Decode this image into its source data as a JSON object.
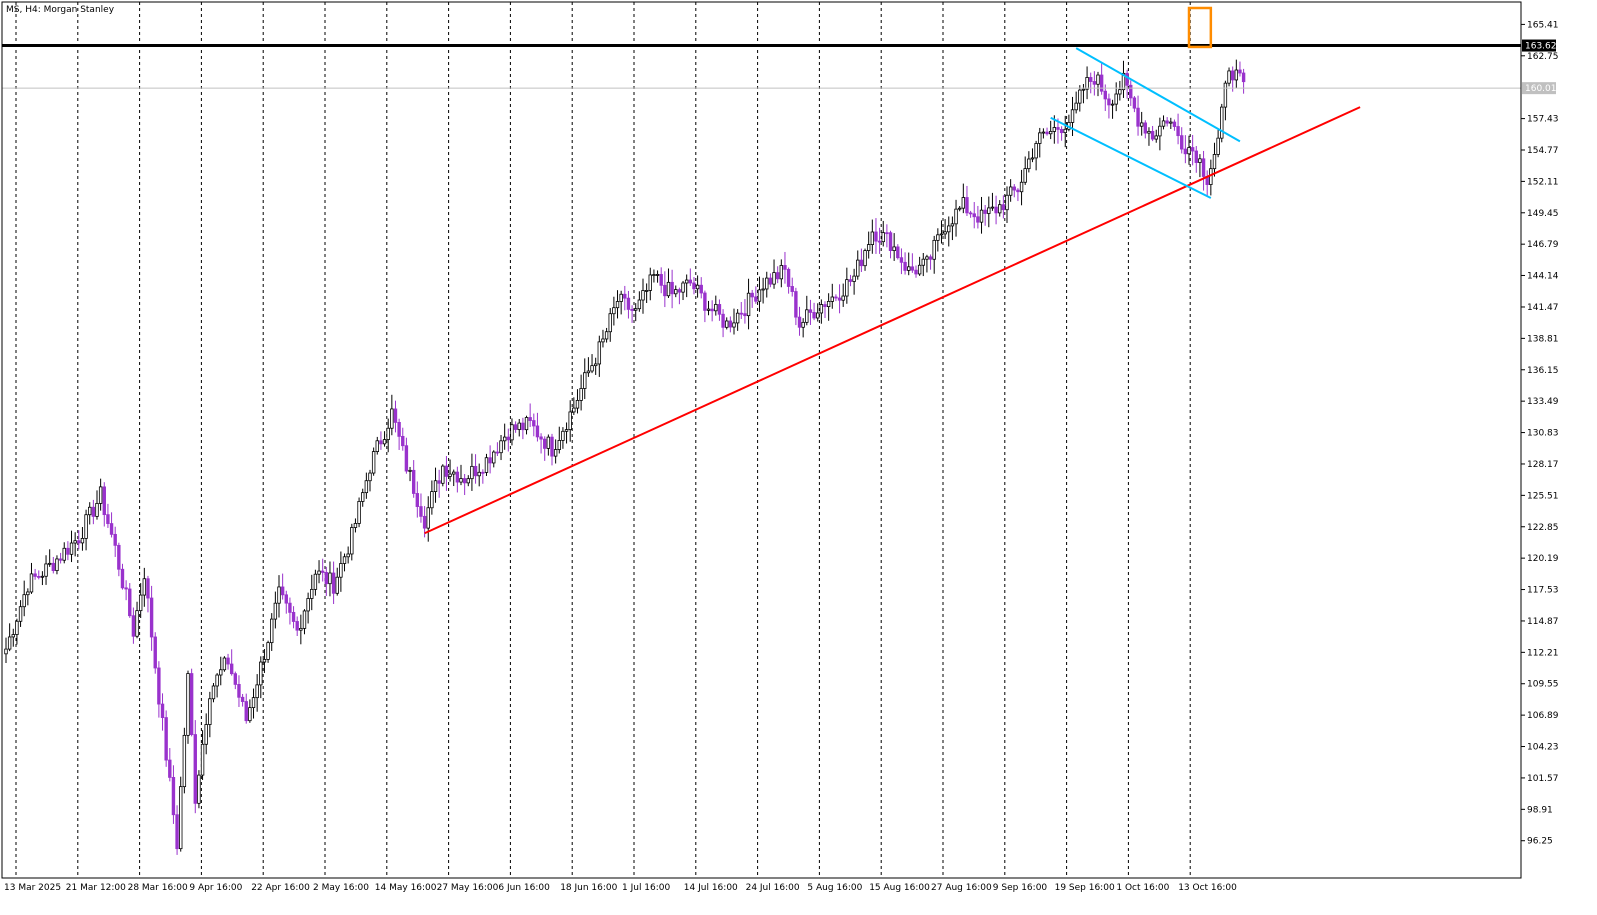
{
  "header": {
    "symbol_label": "MS, H4:  Morgan Stanley"
  },
  "chart_data": {
    "type": "candlestick",
    "symbol": "MS",
    "timeframe": "H4",
    "instrument": "Morgan Stanley",
    "price_axis": {
      "min": 93.6,
      "max": 166.8,
      "ticks": [
        165.41,
        162.75,
        157.43,
        154.77,
        152.11,
        149.45,
        146.79,
        144.14,
        141.47,
        138.81,
        136.15,
        133.49,
        130.83,
        128.17,
        125.51,
        122.85,
        120.19,
        117.53,
        114.87,
        112.21,
        109.55,
        106.89,
        104.23,
        101.57,
        98.91,
        96.25
      ]
    },
    "time_axis": {
      "labels": [
        "13 Mar 2025",
        "21 Mar 12:00",
        "28 Mar 16:00",
        "9 Apr 16:00",
        "22 Apr 16:00",
        "2 May 16:00",
        "14 May 16:00",
        "27 May 16:00",
        "6 Jun 16:00",
        "18 Jun 16:00",
        "1 Jul 16:00",
        "14 Jul 16:00",
        "24 Jul 16:00",
        "5 Aug 16:00",
        "15 Aug 16:00",
        "27 Aug 16:00",
        "9 Sep 16:00",
        "19 Sep 16:00",
        "1 Oct 16:00",
        "13 Oct 16:00"
      ],
      "grid_lines": "vertical dashed"
    },
    "price_labels": {
      "resistance": "163.62",
      "current": "160.01"
    },
    "levels": {
      "resistance": 163.62,
      "current": 160.01
    },
    "path": [
      {
        "bar": 0,
        "price": 112.5
      },
      {
        "bar": 6,
        "price": 118.0
      },
      {
        "bar": 12,
        "price": 119.5
      },
      {
        "bar": 20,
        "price": 122.0
      },
      {
        "bar": 26,
        "price": 125.5
      },
      {
        "bar": 30,
        "price": 121.0
      },
      {
        "bar": 35,
        "price": 114.0
      },
      {
        "bar": 38,
        "price": 119.0
      },
      {
        "bar": 42,
        "price": 108.5
      },
      {
        "bar": 47,
        "price": 96.0
      },
      {
        "bar": 50,
        "price": 110.0
      },
      {
        "bar": 52,
        "price": 100.0
      },
      {
        "bar": 56,
        "price": 109.0
      },
      {
        "bar": 61,
        "price": 111.5
      },
      {
        "bar": 66,
        "price": 106.5
      },
      {
        "bar": 70,
        "price": 111.0
      },
      {
        "bar": 75,
        "price": 117.0
      },
      {
        "bar": 80,
        "price": 114.0
      },
      {
        "bar": 85,
        "price": 119.0
      },
      {
        "bar": 90,
        "price": 118.0
      },
      {
        "bar": 95,
        "price": 122.0
      },
      {
        "bar": 100,
        "price": 128.0
      },
      {
        "bar": 106,
        "price": 132.5
      },
      {
        "bar": 110,
        "price": 128.0
      },
      {
        "bar": 115,
        "price": 123.5
      },
      {
        "bar": 120,
        "price": 128.0
      },
      {
        "bar": 126,
        "price": 127.0
      },
      {
        "bar": 132,
        "price": 128.5
      },
      {
        "bar": 138,
        "price": 131.0
      },
      {
        "bar": 144,
        "price": 131.5
      },
      {
        "bar": 150,
        "price": 129.5
      },
      {
        "bar": 156,
        "price": 133.0
      },
      {
        "bar": 160,
        "price": 136.0
      },
      {
        "bar": 164,
        "price": 138.5
      },
      {
        "bar": 168,
        "price": 142.0
      },
      {
        "bar": 173,
        "price": 141.0
      },
      {
        "bar": 178,
        "price": 144.0
      },
      {
        "bar": 183,
        "price": 142.5
      },
      {
        "bar": 188,
        "price": 143.5
      },
      {
        "bar": 193,
        "price": 141.5
      },
      {
        "bar": 198,
        "price": 140.0
      },
      {
        "bar": 203,
        "price": 141.5
      },
      {
        "bar": 208,
        "price": 143.5
      },
      {
        "bar": 214,
        "price": 144.5
      },
      {
        "bar": 218,
        "price": 140.0
      },
      {
        "bar": 223,
        "price": 141.5
      },
      {
        "bar": 228,
        "price": 142.5
      },
      {
        "bar": 233,
        "price": 144.0
      },
      {
        "bar": 238,
        "price": 148.0
      },
      {
        "bar": 243,
        "price": 147.0
      },
      {
        "bar": 248,
        "price": 144.5
      },
      {
        "bar": 253,
        "price": 145.0
      },
      {
        "bar": 258,
        "price": 148.5
      },
      {
        "bar": 263,
        "price": 150.0
      },
      {
        "bar": 268,
        "price": 149.0
      },
      {
        "bar": 273,
        "price": 150.0
      },
      {
        "bar": 278,
        "price": 151.5
      },
      {
        "bar": 283,
        "price": 155.5
      },
      {
        "bar": 288,
        "price": 156.5
      },
      {
        "bar": 293,
        "price": 157.5
      },
      {
        "bar": 296,
        "price": 160.0
      },
      {
        "bar": 299,
        "price": 161.0
      },
      {
        "bar": 303,
        "price": 159.0
      },
      {
        "bar": 307,
        "price": 160.5
      },
      {
        "bar": 311,
        "price": 157.5
      },
      {
        "bar": 315,
        "price": 156.0
      },
      {
        "bar": 319,
        "price": 157.5
      },
      {
        "bar": 323,
        "price": 155.5
      },
      {
        "bar": 327,
        "price": 154.5
      },
      {
        "bar": 330,
        "price": 152.5
      },
      {
        "bar": 333,
        "price": 155.5
      },
      {
        "bar": 336,
        "price": 162.0
      },
      {
        "bar": 340,
        "price": 160.0
      }
    ],
    "bar_count": 341,
    "overlays": [
      {
        "kind": "horizontal_line",
        "color": "#000000",
        "price": 163.62,
        "from_bar": "start",
        "to_bar": "end"
      },
      {
        "kind": "horizontal_line",
        "color": "#c0c0c0",
        "price": 160.01,
        "from_bar": "start",
        "to_bar": "end"
      },
      {
        "kind": "trend_line",
        "color": "#ff0000",
        "points": [
          {
            "bar": 115,
            "price": 122.3
          },
          {
            "bar": 372,
            "price": 158.4
          }
        ]
      },
      {
        "kind": "trend_line",
        "color": "#00bfff",
        "points": [
          {
            "bar": 294,
            "price": 163.4
          },
          {
            "bar": 339,
            "price": 155.5
          }
        ]
      },
      {
        "kind": "trend_line",
        "color": "#00bfff",
        "points": [
          {
            "bar": 287,
            "price": 157.5
          },
          {
            "bar": 331,
            "price": 150.7
          }
        ]
      },
      {
        "kind": "rectangle",
        "color": "#ff8c00",
        "from_bar": 325,
        "to_bar": 331,
        "price_high": 166.8,
        "price_low": 163.5
      }
    ],
    "colors": {
      "bull_body": "#ffffff",
      "bear_body": "#9932cc",
      "wick": "#000000",
      "grid": "#000000",
      "resistance": "#000000",
      "support": "#ff0000",
      "channel": "#00bfff",
      "highlight": "#ff8c00"
    }
  }
}
